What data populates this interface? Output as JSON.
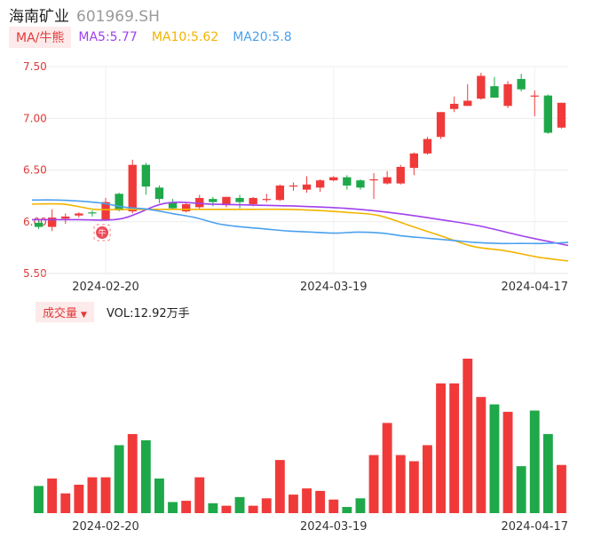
{
  "header": {
    "name": "海南矿业",
    "code": "601969.SH"
  },
  "legend": {
    "ma_tag": "MA/牛熊",
    "ma5": "MA5:5.77",
    "ma10": "MA10:5.62",
    "ma20": "MA20:5.8"
  },
  "volume_legend": {
    "tag": "成交量",
    "caret": "▼",
    "value": "VOL:12.92万手"
  },
  "marker": {
    "text": "牛"
  },
  "colors": {
    "up": "#f03a3a",
    "down": "#1fa84a",
    "ma5": "#a040ee",
    "ma10": "#f2b400",
    "ma20": "#4aa0ee",
    "axis_label": "#e13a3a"
  },
  "chart_data": [
    {
      "type": "candlestick",
      "title": "",
      "y_ticks": [
        "7.50",
        "7.00",
        "6.50",
        "6.00",
        "5.50"
      ],
      "x_ticks": [
        "2024-02-20",
        "2024-03-19",
        "2024-04-17"
      ],
      "ylim": [
        5.5,
        7.5
      ],
      "candles": [
        {
          "o": 5.99,
          "c": 5.95,
          "h": 6.01,
          "l": 5.93
        },
        {
          "o": 5.95,
          "c": 6.04,
          "h": 6.12,
          "l": 5.91
        },
        {
          "o": 6.03,
          "c": 6.05,
          "h": 6.08,
          "l": 5.98
        },
        {
          "o": 6.06,
          "c": 6.08,
          "h": 6.09,
          "l": 6.04
        },
        {
          "o": 6.09,
          "c": 6.08,
          "h": 6.11,
          "l": 6.05
        },
        {
          "o": 6.02,
          "c": 6.19,
          "h": 6.23,
          "l": 6.01
        },
        {
          "o": 6.27,
          "c": 6.11,
          "h": 6.28,
          "l": 6.1
        },
        {
          "o": 6.1,
          "c": 6.55,
          "h": 6.6,
          "l": 6.08
        },
        {
          "o": 6.55,
          "c": 6.34,
          "h": 6.57,
          "l": 6.26
        },
        {
          "o": 6.33,
          "c": 6.22,
          "h": 6.35,
          "l": 6.18
        },
        {
          "o": 6.19,
          "c": 6.13,
          "h": 6.22,
          "l": 6.12
        },
        {
          "o": 6.1,
          "c": 6.17,
          "h": 6.18,
          "l": 6.09
        },
        {
          "o": 6.14,
          "c": 6.23,
          "h": 6.26,
          "l": 6.12
        },
        {
          "o": 6.22,
          "c": 6.19,
          "h": 6.24,
          "l": 6.15
        },
        {
          "o": 6.16,
          "c": 6.24,
          "h": 6.24,
          "l": 6.14
        },
        {
          "o": 6.23,
          "c": 6.19,
          "h": 6.26,
          "l": 6.13
        },
        {
          "o": 6.17,
          "c": 6.23,
          "h": 6.24,
          "l": 6.15
        },
        {
          "o": 6.22,
          "c": 6.22,
          "h": 6.27,
          "l": 6.19
        },
        {
          "o": 6.21,
          "c": 6.35,
          "h": 6.36,
          "l": 6.2
        },
        {
          "o": 6.34,
          "c": 6.35,
          "h": 6.38,
          "l": 6.3
        },
        {
          "o": 6.31,
          "c": 6.36,
          "h": 6.44,
          "l": 6.28
        },
        {
          "o": 6.33,
          "c": 6.4,
          "h": 6.41,
          "l": 6.29
        },
        {
          "o": 6.4,
          "c": 6.43,
          "h": 6.44,
          "l": 6.39
        },
        {
          "o": 6.43,
          "c": 6.35,
          "h": 6.45,
          "l": 6.31
        },
        {
          "o": 6.4,
          "c": 6.33,
          "h": 6.41,
          "l": 6.31
        },
        {
          "o": 6.4,
          "c": 6.41,
          "h": 6.47,
          "l": 6.22
        },
        {
          "o": 6.37,
          "c": 6.43,
          "h": 6.49,
          "l": 6.36
        },
        {
          "o": 6.37,
          "c": 6.53,
          "h": 6.55,
          "l": 6.36
        },
        {
          "o": 6.52,
          "c": 6.66,
          "h": 6.67,
          "l": 6.45
        },
        {
          "o": 6.66,
          "c": 6.8,
          "h": 6.82,
          "l": 6.65
        },
        {
          "o": 6.82,
          "c": 7.06,
          "h": 7.06,
          "l": 6.8
        },
        {
          "o": 7.09,
          "c": 7.14,
          "h": 7.21,
          "l": 7.06
        },
        {
          "o": 7.12,
          "c": 7.17,
          "h": 7.33,
          "l": 7.12
        },
        {
          "o": 7.19,
          "c": 7.41,
          "h": 7.44,
          "l": 7.18
        },
        {
          "o": 7.31,
          "c": 7.2,
          "h": 7.4,
          "l": 7.2
        },
        {
          "o": 7.12,
          "c": 7.33,
          "h": 7.36,
          "l": 7.1
        },
        {
          "o": 7.38,
          "c": 7.28,
          "h": 7.43,
          "l": 7.26
        },
        {
          "o": 7.22,
          "c": 7.22,
          "h": 7.27,
          "l": 7.02
        },
        {
          "o": 7.22,
          "c": 6.86,
          "h": 7.23,
          "l": 6.85
        },
        {
          "o": 6.91,
          "c": 7.15,
          "h": 7.15,
          "l": 6.9
        }
      ],
      "series": [
        {
          "name": "MA5",
          "values": [
            6.02,
            6.02,
            6.03,
            6.18,
            6.17,
            6.16,
            6.15,
            6.13,
            6.09,
            6.03,
            5.96,
            5.86,
            5.77
          ]
        },
        {
          "name": "MA10",
          "values": [
            6.17,
            6.17,
            6.12,
            6.12,
            6.12,
            6.12,
            6.12,
            6.12,
            6.12,
            6.11,
            6.09,
            6.06,
            5.96,
            5.86,
            5.76,
            5.72,
            5.66,
            5.62
          ]
        },
        {
          "name": "MA20",
          "values": [
            6.21,
            6.21,
            6.2,
            6.18,
            6.14,
            6.12,
            6.08,
            6.04,
            5.98,
            5.95,
            5.93,
            5.91,
            5.9,
            5.89,
            5.9,
            5.89,
            5.86,
            5.84,
            5.82,
            5.8,
            5.79,
            5.79,
            5.79,
            5.8
          ]
        }
      ]
    },
    {
      "type": "bar",
      "title": "",
      "x_ticks": [
        "2024-02-20",
        "2024-03-19",
        "2024-04-17"
      ],
      "values": [
        2.2,
        2.8,
        1.6,
        2.3,
        2.9,
        2.9,
        5.5,
        6.4,
        5.9,
        2.8,
        0.9,
        1.0,
        2.9,
        0.8,
        0.6,
        1.3,
        0.6,
        1.2,
        4.3,
        1.5,
        2.0,
        1.8,
        1.1,
        0.5,
        1.2,
        4.7,
        7.3,
        4.7,
        4.2,
        5.5,
        10.5,
        10.5,
        12.5,
        9.4,
        8.8,
        8.2,
        3.8,
        8.3,
        6.4,
        3.9
      ],
      "directions": [
        "d",
        "u",
        "u",
        "u",
        "u",
        "u",
        "d",
        "u",
        "d",
        "d",
        "d",
        "u",
        "u",
        "d",
        "u",
        "d",
        "u",
        "u",
        "u",
        "u",
        "u",
        "u",
        "u",
        "d",
        "d",
        "u",
        "u",
        "u",
        "u",
        "u",
        "u",
        "u",
        "u",
        "u",
        "d",
        "u",
        "d",
        "d",
        "d",
        "u"
      ]
    }
  ]
}
